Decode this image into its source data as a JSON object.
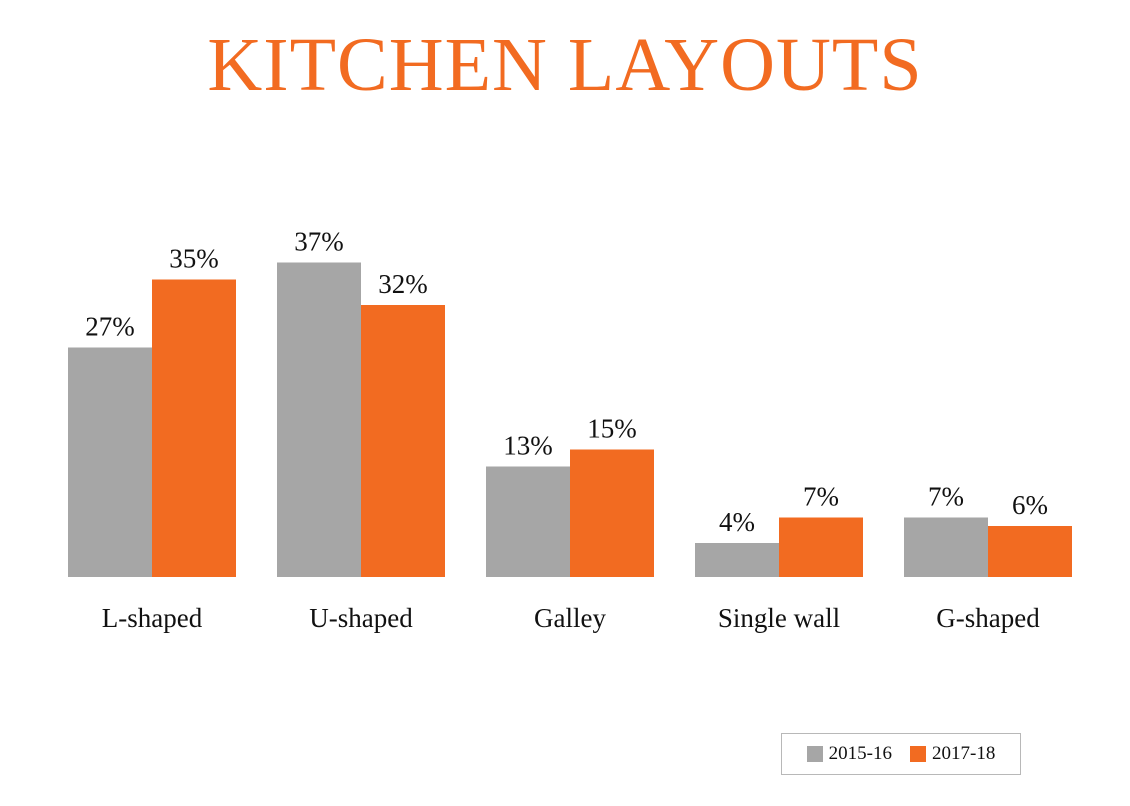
{
  "colors": {
    "title": "#f26b21",
    "series_2015": "#a6a6a6",
    "series_2017": "#f26b21",
    "text": "#111111"
  },
  "chart_data": {
    "type": "bar",
    "title": "KITCHEN LAYOUTS",
    "categories": [
      "L-shaped",
      "U-shaped",
      "Galley",
      "Single wall",
      "G-shaped"
    ],
    "series": [
      {
        "name": "2015-16",
        "values": [
          27,
          37,
          13,
          4,
          7
        ],
        "labels": [
          "27%",
          "37%",
          "13%",
          "4%",
          "7%"
        ]
      },
      {
        "name": "2017-18",
        "values": [
          35,
          32,
          15,
          7,
          6
        ],
        "labels": [
          "35%",
          "32%",
          "15%",
          "7%",
          "6%"
        ]
      }
    ],
    "ylim": [
      0,
      40
    ],
    "grid": false,
    "legend": "bottom-right"
  }
}
